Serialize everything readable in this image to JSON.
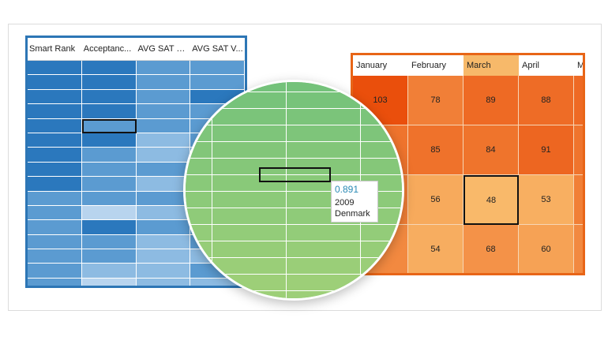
{
  "blue_grid": {
    "columns": [
      "Smart Rank",
      "Acceptanc...",
      "AVG SAT M...",
      "AVG SAT V..."
    ],
    "rows": 16,
    "selected": {
      "row": 4,
      "col": 1
    },
    "colors": {
      "dark": "#2b78bd",
      "mid": "#5b9bd1",
      "light": "#8dbbe2",
      "pale": "#b8d4ee",
      "border": "#2d76b5"
    },
    "cell_levels": [
      [
        "dark",
        "dark",
        "mid",
        "mid"
      ],
      [
        "dark",
        "dark",
        "mid",
        "mid"
      ],
      [
        "dark",
        "dark",
        "mid",
        "dark"
      ],
      [
        "dark",
        "dark",
        "mid",
        "mid"
      ],
      [
        "dark",
        "mid",
        "mid",
        "mid"
      ],
      [
        "dark",
        "dark",
        "light",
        "mid"
      ],
      [
        "dark",
        "mid",
        "light",
        "mid"
      ],
      [
        "dark",
        "mid",
        "mid",
        "mid"
      ],
      [
        "dark",
        "mid",
        "light",
        "light"
      ],
      [
        "mid",
        "mid",
        "mid",
        "mid"
      ],
      [
        "mid",
        "pale",
        "light",
        "mid"
      ],
      [
        "mid",
        "dark",
        "mid",
        "mid"
      ],
      [
        "mid",
        "mid",
        "light",
        "mid"
      ],
      [
        "mid",
        "mid",
        "light",
        "light"
      ],
      [
        "mid",
        "light",
        "light",
        "mid"
      ],
      [
        "mid",
        "pale",
        "light",
        "light"
      ]
    ]
  },
  "chart_data": {
    "type": "heatmap",
    "columns": [
      "January",
      "February",
      "March",
      "April",
      "M"
    ],
    "active_column": "March",
    "values": [
      [
        103,
        78,
        89,
        88,
        null
      ],
      [
        null,
        85,
        84,
        91,
        null
      ],
      [
        null,
        56,
        48,
        53,
        null
      ],
      [
        null,
        54,
        68,
        60,
        null
      ]
    ],
    "selected": {
      "row": 2,
      "col": 2
    },
    "color_scale": {
      "low": "#f9b96a",
      "high": "#ea4f0c",
      "min": 48,
      "max": 103
    },
    "border_color": "#e86517"
  },
  "magnifier": {
    "tooltip": {
      "value": "0.891",
      "year": "2009",
      "country": "Denmark"
    },
    "colors": {
      "light": "#9dcf78",
      "dark": "#74c27a"
    }
  }
}
